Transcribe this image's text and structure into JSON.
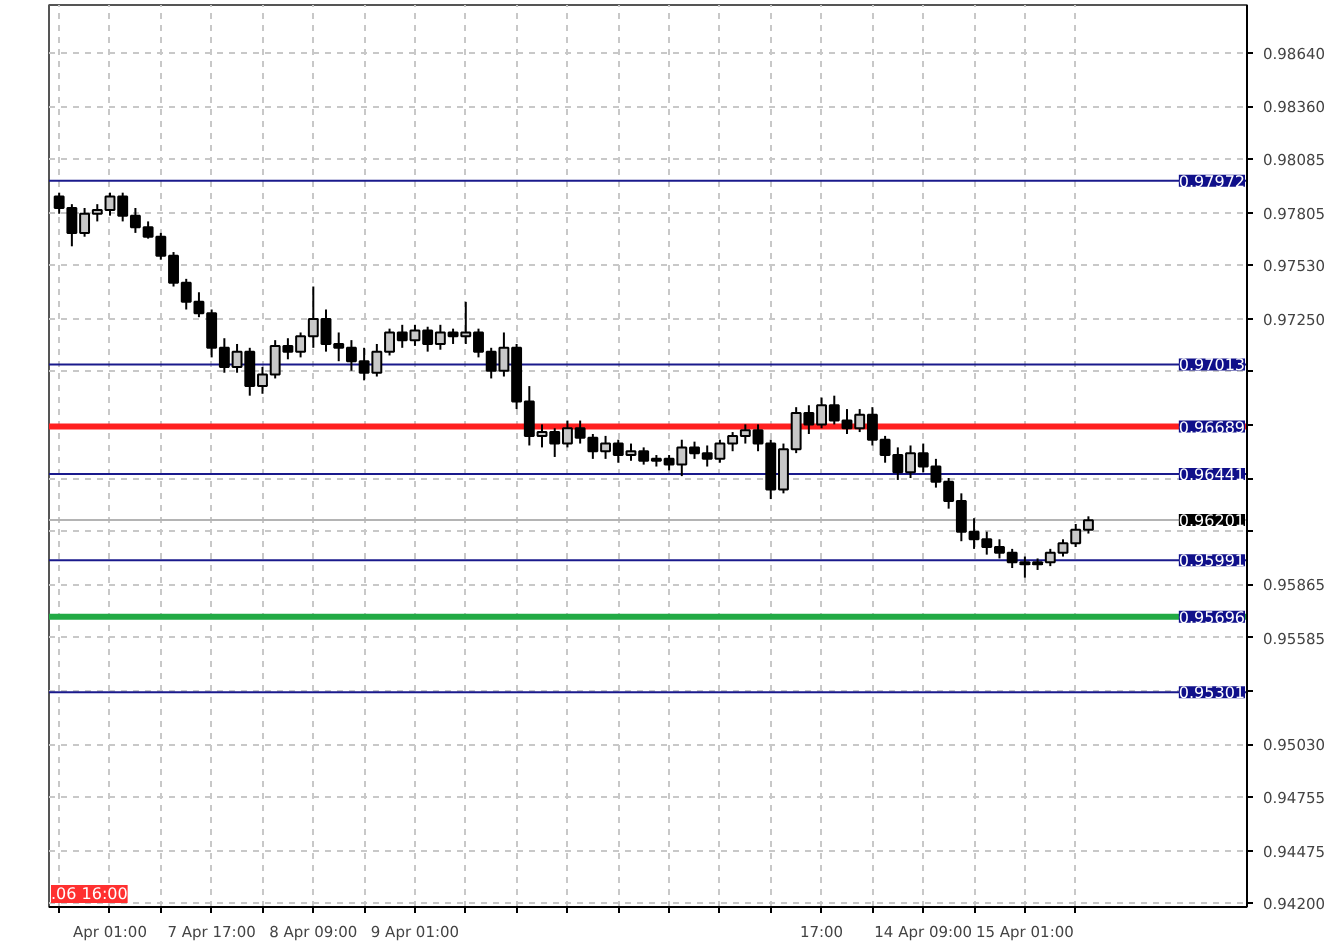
{
  "chart_data": {
    "type": "candlestick",
    "categories": [
      null,
      null,
      null,
      null,
      "Apr 01:00",
      null,
      null,
      null,
      null,
      null,
      null,
      null,
      "7 Apr 17:00",
      null,
      null,
      null,
      null,
      null,
      null,
      null,
      "8 Apr 09:00",
      null,
      null,
      null,
      null,
      null,
      null,
      null,
      "9 Apr 01:00",
      null,
      null,
      null,
      null,
      null,
      null,
      null,
      null,
      null,
      null,
      null,
      null,
      null,
      null,
      null,
      null,
      null,
      null,
      null,
      null,
      null,
      null,
      null,
      null,
      null,
      null,
      null,
      null,
      null,
      null,
      null,
      "17:00",
      null,
      null,
      null,
      null,
      null,
      null,
      null,
      "14 Apr 09:00",
      null,
      null,
      null,
      null,
      null,
      null,
      null,
      "15 Apr 01:00",
      null,
      null,
      null,
      null,
      null
    ],
    "ohlc": [
      [
        0.9789,
        0.9791,
        0.978,
        0.9783
      ],
      [
        0.9783,
        0.9785,
        0.9763,
        0.977
      ],
      [
        0.977,
        0.9783,
        0.9768,
        0.978
      ],
      [
        0.978,
        0.9785,
        0.9776,
        0.9782
      ],
      [
        0.9782,
        0.9791,
        0.9779,
        0.9789
      ],
      [
        0.9789,
        0.9791,
        0.9776,
        0.9779
      ],
      [
        0.9779,
        0.9783,
        0.977,
        0.9773
      ],
      [
        0.9773,
        0.9776,
        0.9767,
        0.9768
      ],
      [
        0.9768,
        0.977,
        0.9756,
        0.9758
      ],
      [
        0.9758,
        0.976,
        0.9742,
        0.9744
      ],
      [
        0.9744,
        0.9746,
        0.973,
        0.9734
      ],
      [
        0.9734,
        0.9739,
        0.9726,
        0.9728
      ],
      [
        0.9728,
        0.973,
        0.9705,
        0.971
      ],
      [
        0.971,
        0.9715,
        0.9697,
        0.97
      ],
      [
        0.97,
        0.9712,
        0.9697,
        0.9708
      ],
      [
        0.9708,
        0.971,
        0.9685,
        0.969
      ],
      [
        0.969,
        0.97,
        0.9686,
        0.9696
      ],
      [
        0.9696,
        0.9714,
        0.9694,
        0.9711
      ],
      [
        0.9711,
        0.9715,
        0.9704,
        0.9708
      ],
      [
        0.9708,
        0.9718,
        0.9705,
        0.9716
      ],
      [
        0.9716,
        0.9742,
        0.971,
        0.9725
      ],
      [
        0.9725,
        0.973,
        0.9708,
        0.9712
      ],
      [
        0.9712,
        0.9718,
        0.9703,
        0.971
      ],
      [
        0.971,
        0.9714,
        0.9698,
        0.9703
      ],
      [
        0.9703,
        0.971,
        0.9693,
        0.9697
      ],
      [
        0.9697,
        0.9712,
        0.9695,
        0.9708
      ],
      [
        0.9708,
        0.972,
        0.9706,
        0.9718
      ],
      [
        0.9718,
        0.9722,
        0.971,
        0.9714
      ],
      [
        0.9714,
        0.9722,
        0.9711,
        0.9719
      ],
      [
        0.9719,
        0.9721,
        0.9708,
        0.9712
      ],
      [
        0.9712,
        0.9722,
        0.9709,
        0.9718
      ],
      [
        0.9718,
        0.972,
        0.9712,
        0.9716
      ],
      [
        0.9716,
        0.9734,
        0.9712,
        0.9718
      ],
      [
        0.9718,
        0.972,
        0.9705,
        0.9708
      ],
      [
        0.9708,
        0.971,
        0.9694,
        0.9698
      ],
      [
        0.9698,
        0.9718,
        0.9695,
        0.971
      ],
      [
        0.971,
        0.9712,
        0.9678,
        0.9682
      ],
      [
        0.9682,
        0.969,
        0.9659,
        0.9664
      ],
      [
        0.9664,
        0.967,
        0.9658,
        0.9666
      ],
      [
        0.9666,
        0.9668,
        0.9653,
        0.966
      ],
      [
        0.966,
        0.9672,
        0.9658,
        0.9668
      ],
      [
        0.9668,
        0.9672,
        0.966,
        0.9663
      ],
      [
        0.9663,
        0.9665,
        0.9652,
        0.9656
      ],
      [
        0.9656,
        0.9664,
        0.9652,
        0.966
      ],
      [
        0.966,
        0.9662,
        0.965,
        0.9654
      ],
      [
        0.9654,
        0.966,
        0.9651,
        0.9656
      ],
      [
        0.9656,
        0.9658,
        0.9649,
        0.9651
      ],
      [
        0.9651,
        0.9654,
        0.9648,
        0.9652
      ],
      [
        0.9652,
        0.9654,
        0.9646,
        0.9649
      ],
      [
        0.9649,
        0.9662,
        0.9643,
        0.9658
      ],
      [
        0.9658,
        0.9661,
        0.9652,
        0.9655
      ],
      [
        0.9655,
        0.9659,
        0.9648,
        0.9652
      ],
      [
        0.9652,
        0.9662,
        0.965,
        0.966
      ],
      [
        0.966,
        0.9666,
        0.9656,
        0.9664
      ],
      [
        0.9664,
        0.967,
        0.966,
        0.9667
      ],
      [
        0.9667,
        0.967,
        0.9656,
        0.966
      ],
      [
        0.966,
        0.9662,
        0.9631,
        0.9636
      ],
      [
        0.9636,
        0.966,
        0.9634,
        0.9657
      ],
      [
        0.9657,
        0.9679,
        0.9655,
        0.9676
      ],
      [
        0.9676,
        0.968,
        0.9665,
        0.967
      ],
      [
        0.967,
        0.9684,
        0.9668,
        0.968
      ],
      [
        0.968,
        0.9685,
        0.967,
        0.9672
      ],
      [
        0.9672,
        0.9678,
        0.9665,
        0.9668
      ],
      [
        0.9668,
        0.9678,
        0.9666,
        0.9675
      ],
      [
        0.9675,
        0.9679,
        0.9659,
        0.9662
      ],
      [
        0.9662,
        0.9664,
        0.965,
        0.9654
      ],
      [
        0.9654,
        0.9658,
        0.9641,
        0.9645
      ],
      [
        0.9645,
        0.9659,
        0.9642,
        0.9655
      ],
      [
        0.9655,
        0.966,
        0.9645,
        0.9648
      ],
      [
        0.9648,
        0.9652,
        0.9637,
        0.964
      ],
      [
        0.964,
        0.9642,
        0.9626,
        0.963
      ],
      [
        0.963,
        0.9634,
        0.9609,
        0.9614
      ],
      [
        0.9614,
        0.9621,
        0.9605,
        0.961
      ],
      [
        0.961,
        0.9614,
        0.9602,
        0.9606
      ],
      [
        0.9606,
        0.961,
        0.96,
        0.9603
      ],
      [
        0.9603,
        0.9605,
        0.9595,
        0.9598
      ],
      [
        0.9598,
        0.9601,
        0.959,
        0.9597
      ],
      [
        0.9597,
        0.96,
        0.9594,
        0.9598
      ],
      [
        0.9598,
        0.9605,
        0.9596,
        0.9603
      ],
      [
        0.9603,
        0.961,
        0.9601,
        0.9608
      ],
      [
        0.9608,
        0.9618,
        0.9606,
        0.9615
      ],
      [
        0.9615,
        0.9622,
        0.9613,
        0.962
      ]
    ],
    "ylim": [
      0.9418,
      0.9889
    ],
    "yticks": [
      "0.98640",
      "0.98360",
      "0.98085",
      "0.97805",
      "0.97530",
      "0.97250",
      {
        "value": 0.96975,
        "label": null
      },
      {
        "value": 0.96695,
        "label": null
      },
      {
        "value": 0.9642,
        "label": null
      },
      {
        "value": 0.9614,
        "label": null
      },
      "0.95865",
      "0.95585",
      {
        "value": 0.9531,
        "label": null
      },
      "0.95030",
      "0.94755",
      "0.94475",
      "0.94200"
    ],
    "grid": true,
    "annotations": [
      ".06 16:00"
    ],
    "ref_lines": [
      {
        "axis": "y",
        "value": 0.97972,
        "label": "0.97972",
        "color": "#1a1a8c"
      },
      {
        "axis": "y",
        "value": 0.97013,
        "label": "0.97013",
        "color": "#1a1a8c"
      },
      {
        "axis": "y",
        "value": 0.96689,
        "label": "0.96689",
        "color": "#ff2020"
      },
      {
        "axis": "y",
        "value": 0.96441,
        "label": "0.96441",
        "color": "#1a1a8c"
      },
      {
        "axis": "y",
        "value": 0.96201,
        "label": "0.96201",
        "color": "#b4b4b4"
      },
      {
        "axis": "y",
        "value": 0.95991,
        "label": "0.95991",
        "color": "#1a1a8c"
      },
      {
        "axis": "y",
        "value": 0.95696,
        "label": "0.95696",
        "color": "#22aa44"
      },
      {
        "axis": "y",
        "value": 0.95301,
        "label": "0.95301",
        "color": "#1a1a8c"
      }
    ]
  }
}
